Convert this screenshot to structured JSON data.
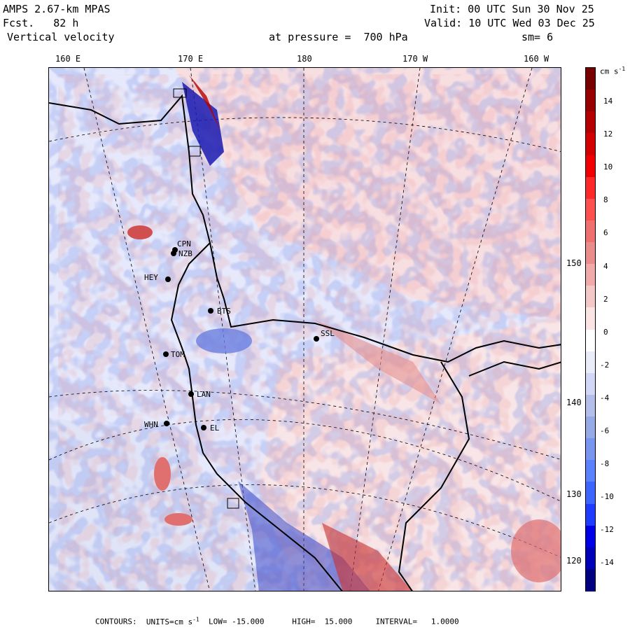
{
  "header": {
    "model": "AMPS 2.67-km MPAS",
    "fcst": "Fcst.   82 h",
    "field": "Vertical velocity",
    "level": "at pressure =  700 hPa",
    "init": "Init: 00 UTC Sun 30 Nov 25",
    "valid": "Valid: 10 UTC Wed 03 Dec 25",
    "smoothing": "sm= 6"
  },
  "longitude_labels": [
    "160 E",
    "170 E",
    "180",
    "170 W",
    "160 W"
  ],
  "latitude_labels": [
    "150 W",
    "140 W",
    "130 W",
    "120 W"
  ],
  "stations": [
    "CPN",
    "NZB",
    "HEY",
    "BTS",
    "TOM",
    "LAN",
    "WHN",
    "EL",
    "SSL"
  ],
  "colorbar": {
    "units_prefix": "cm s",
    "units_exp": "-1",
    "labels": [
      "14",
      "12",
      "10",
      "8",
      "6",
      "4",
      "2",
      "0",
      "-2",
      "-4",
      "-6",
      "-8",
      "-10",
      "-12",
      "-14"
    ],
    "colors": [
      "#000080",
      "#0000b8",
      "#0000e6",
      "#1e3cff",
      "#3c64ff",
      "#5a82ff",
      "#7896f0",
      "#96aae6",
      "#b4beeb",
      "#d2d7f5",
      "#ebecfa",
      "#ffffff",
      "#fbe4e4",
      "#f5c8c8",
      "#f0aaaa",
      "#eb8c8c",
      "#f07070",
      "#ff5050",
      "#ff2828",
      "#f00000",
      "#d20000",
      "#b40000",
      "#960000",
      "#780000"
    ]
  },
  "footer": {
    "contours_label": "CONTOURS:",
    "units_label": "UNITS=cm s",
    "units_exp": "-1",
    "low": "LOW= -15.000",
    "high": "HIGH=  15.000",
    "interval": "INTERVAL=   1.0000"
  }
}
